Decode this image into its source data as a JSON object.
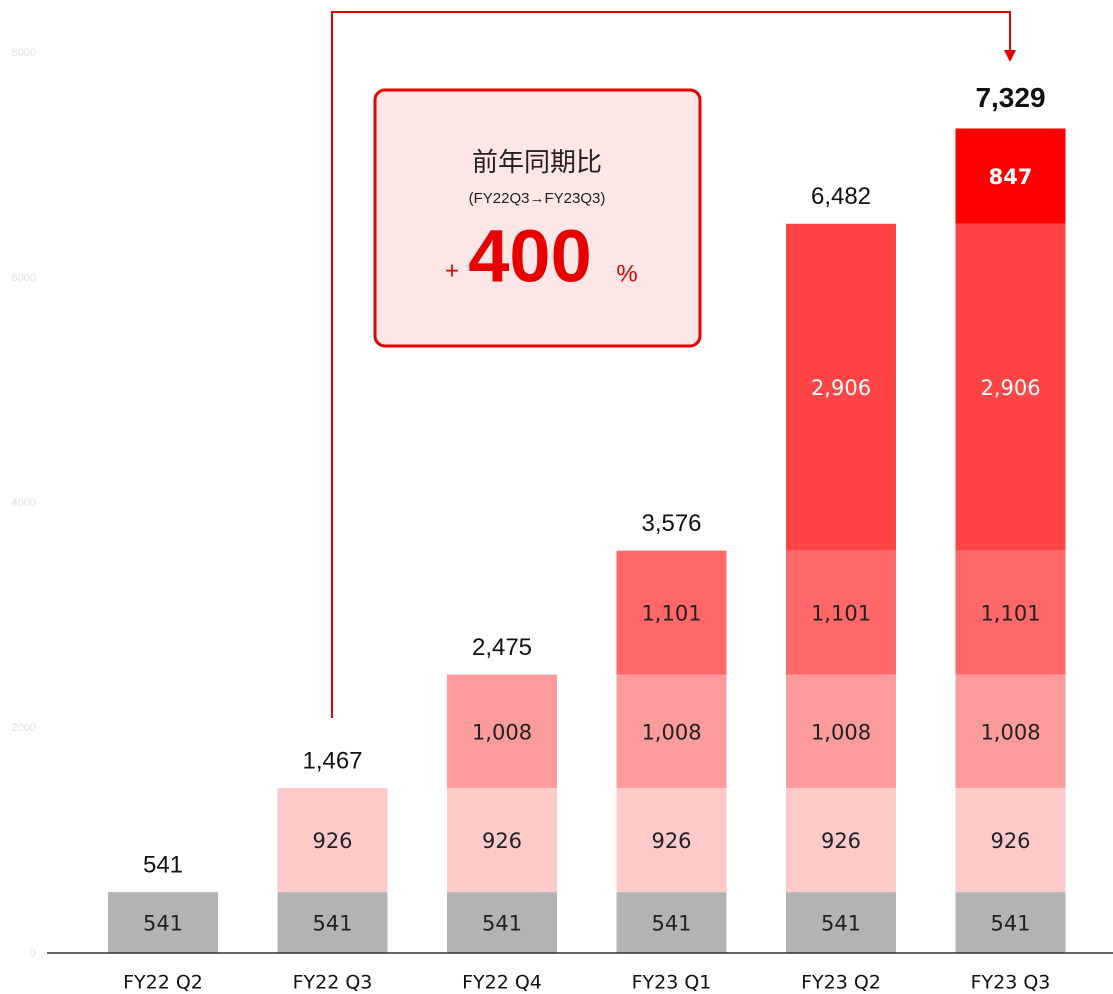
{
  "chart_data": {
    "type": "stacked_bar",
    "categories": [
      "FY22 Q2",
      "FY22 Q3",
      "FY22 Q4",
      "FY23 Q1",
      "FY23 Q2",
      "FY23 Q3"
    ],
    "series": [
      {
        "color": "#b3b3b3",
        "values": [
          541,
          541,
          541,
          541,
          541,
          541
        ],
        "value_labels": [
          "541",
          "541",
          "541",
          "541",
          "541",
          "541"
        ]
      },
      {
        "color": "#fdcaca",
        "values": [
          null,
          926,
          926,
          926,
          926,
          926
        ],
        "value_labels": [
          null,
          "926",
          "926",
          "926",
          "926",
          "926"
        ]
      },
      {
        "color": "#fb9b9b",
        "values": [
          null,
          null,
          1008,
          1008,
          1008,
          1008
        ],
        "value_labels": [
          null,
          null,
          "1,008",
          "1,008",
          "1,008",
          "1,008"
        ]
      },
      {
        "color": "#fe6868",
        "values": [
          null,
          null,
          null,
          1101,
          1101,
          1101
        ],
        "value_labels": [
          null,
          null,
          null,
          "1,101",
          "1,101",
          "1,101"
        ]
      },
      {
        "color": "#fe4444",
        "values": [
          null,
          null,
          null,
          null,
          2906,
          2906
        ],
        "value_labels": [
          null,
          null,
          null,
          null,
          "2,906",
          "2,906"
        ]
      },
      {
        "color": "#ff0000",
        "values": [
          null,
          null,
          null,
          null,
          null,
          847
        ],
        "value_labels": [
          null,
          null,
          null,
          null,
          null,
          "847"
        ]
      }
    ],
    "total_labels": [
      "541",
      "1,467",
      "2,475",
      "3,576",
      "6,482",
      "7,329"
    ],
    "ylim": [
      0,
      8000
    ],
    "yticks": [
      0,
      2000,
      4000,
      6000,
      8000
    ],
    "annotation": {
      "title": "前年同期比",
      "subtitle": "(FY22Q3→FY23Q3)",
      "prefix": "+",
      "value": 400,
      "suffix": "%"
    }
  }
}
